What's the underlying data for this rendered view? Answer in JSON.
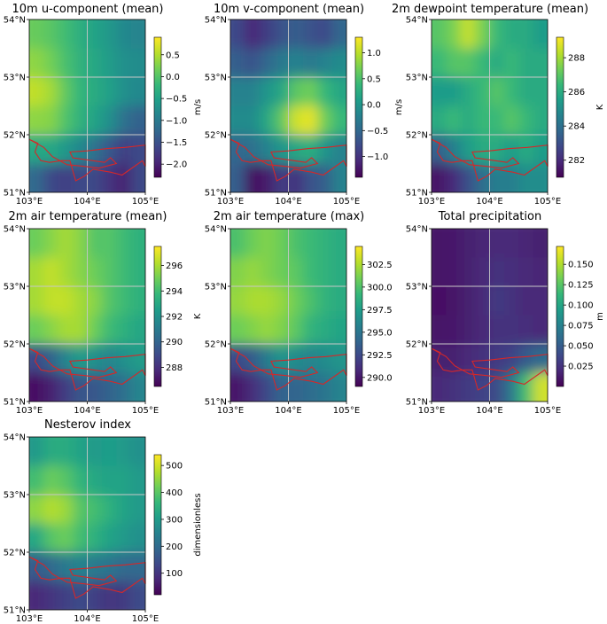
{
  "chart_data": [
    {
      "type": "heatmap",
      "id": "u10",
      "title": "10m u-component (mean)",
      "colorbar_label": "m/s",
      "colormap": "viridis",
      "vmin": -2.3,
      "vmax": 0.9,
      "colorbar_ticks": [
        0.5,
        0.0,
        -0.5,
        -1.0,
        -1.5,
        -2.0
      ],
      "colorbar_tick_labels": [
        "0.5",
        "0.0",
        "−0.5",
        "−1.0",
        "−1.5",
        "−2.0"
      ],
      "x_ticks": [
        103,
        104,
        105
      ],
      "x_tick_labels": [
        "103°E",
        "104°E",
        "105°E"
      ],
      "y_ticks": [
        51,
        52,
        53,
        54
      ],
      "y_tick_labels": [
        "51°N",
        "52°N",
        "53°N",
        "54°N"
      ],
      "xlim": [
        103,
        105
      ],
      "ylim": [
        51,
        54
      ],
      "grid_resolution": "6 rows (54°N→51°N) × 8 cols (103°E→105°E)",
      "values": [
        [
          0.15,
          0.05,
          -0.1,
          -0.3,
          -0.45,
          -0.6,
          -0.8,
          -0.85
        ],
        [
          0.35,
          0.2,
          -0.05,
          -0.25,
          -0.4,
          -0.55,
          -0.7,
          -0.75
        ],
        [
          0.6,
          0.45,
          0.1,
          -0.2,
          -0.35,
          -0.5,
          -0.7,
          -0.8
        ],
        [
          0.35,
          0.3,
          0.0,
          -0.25,
          -0.45,
          -0.7,
          -1.1,
          -1.3
        ],
        [
          -0.4,
          -0.4,
          -0.6,
          -0.8,
          -1.1,
          -1.4,
          -1.7,
          -1.6
        ],
        [
          -1.2,
          -1.6,
          -1.7,
          -1.6,
          -1.6,
          -1.8,
          -2.0,
          -1.6
        ]
      ]
    },
    {
      "type": "heatmap",
      "id": "v10",
      "title": "10m v-component (mean)",
      "colorbar_label": "m/s",
      "colormap": "viridis",
      "vmin": -1.4,
      "vmax": 1.3,
      "colorbar_ticks": [
        1.0,
        0.5,
        0.0,
        -0.5,
        -1.0
      ],
      "colorbar_tick_labels": [
        "1.0",
        "0.5",
        "0.0",
        "−0.5",
        "−1.0"
      ],
      "x_ticks": [
        103,
        104,
        105
      ],
      "x_tick_labels": [
        "103°E",
        "104°E",
        "105°E"
      ],
      "y_ticks": [
        51,
        52,
        53,
        54
      ],
      "y_tick_labels": [
        "51°N",
        "52°N",
        "53°N",
        "54°N"
      ],
      "xlim": [
        103,
        105
      ],
      "ylim": [
        51,
        54
      ],
      "grid_resolution": "6 rows (54°N→51°N) × 8 cols (103°E→105°E)",
      "values": [
        [
          -0.8,
          -1.1,
          -0.9,
          -0.7,
          -0.6,
          -0.7,
          -0.8,
          -0.5
        ],
        [
          -0.6,
          -0.7,
          -0.5,
          -0.3,
          -0.2,
          -0.3,
          -0.2,
          -0.1
        ],
        [
          -0.2,
          -0.2,
          0.0,
          0.2,
          0.6,
          0.7,
          0.4,
          0.2
        ],
        [
          -0.1,
          -0.1,
          0.2,
          0.6,
          1.1,
          1.2,
          0.7,
          0.4
        ],
        [
          -0.5,
          -0.4,
          -0.2,
          0.0,
          0.2,
          0.3,
          0.0,
          -0.2
        ],
        [
          -0.6,
          -1.3,
          -1.2,
          -0.9,
          -1.0,
          -0.7,
          -0.6,
          -0.2
        ]
      ]
    },
    {
      "type": "heatmap",
      "id": "d2m",
      "title": "2m dewpoint temperature (mean)",
      "colorbar_label": "K",
      "colormap": "viridis",
      "vmin": 281.0,
      "vmax": 289.2,
      "colorbar_ticks": [
        288,
        286,
        284,
        282
      ],
      "colorbar_tick_labels": [
        "288",
        "286",
        "284",
        "282"
      ],
      "x_ticks": [
        103,
        104,
        105
      ],
      "x_tick_labels": [
        "103°E",
        "104°E",
        "105°E"
      ],
      "y_ticks": [
        51,
        52,
        53,
        54
      ],
      "y_tick_labels": [
        "51°N",
        "52°N",
        "53°N",
        "54°N"
      ],
      "xlim": [
        103,
        105
      ],
      "ylim": [
        51,
        54
      ],
      "grid_resolution": "6 rows (54°N→51°N) × 8 cols (103°E→105°E)",
      "values": [
        [
          287.0,
          287.5,
          288.5,
          287.5,
          286.5,
          286.0,
          286.0,
          285.5
        ],
        [
          286.5,
          287.0,
          287.0,
          286.5,
          286.0,
          286.5,
          286.0,
          286.0
        ],
        [
          285.5,
          285.5,
          286.0,
          286.5,
          287.0,
          286.5,
          286.0,
          286.0
        ],
        [
          286.0,
          286.5,
          286.0,
          286.5,
          286.5,
          287.0,
          286.5,
          286.0
        ],
        [
          283.5,
          284.5,
          285.5,
          286.0,
          286.0,
          285.5,
          286.0,
          285.5
        ],
        [
          281.5,
          282.0,
          283.0,
          284.0,
          284.5,
          284.5,
          285.0,
          285.0
        ]
      ]
    },
    {
      "type": "heatmap",
      "id": "t2m_mean",
      "title": "2m air temperature (mean)",
      "colorbar_label": "K",
      "colormap": "viridis",
      "vmin": 286.5,
      "vmax": 297.5,
      "colorbar_ticks": [
        296,
        294,
        292,
        290,
        288
      ],
      "colorbar_tick_labels": [
        "296",
        "294",
        "292",
        "290",
        "288"
      ],
      "x_ticks": [
        103,
        104,
        105
      ],
      "x_tick_labels": [
        "103°E",
        "104°E",
        "105°E"
      ],
      "y_ticks": [
        51,
        52,
        53,
        54
      ],
      "y_tick_labels": [
        "51°N",
        "52°N",
        "53°N",
        "54°N"
      ],
      "xlim": [
        103,
        105
      ],
      "ylim": [
        51,
        54
      ],
      "grid_resolution": "6 rows (54°N→51°N) × 8 cols (103°E→105°E)",
      "values": [
        [
          295.0,
          295.5,
          296.0,
          295.5,
          294.5,
          294.5,
          294.0,
          293.5
        ],
        [
          296.0,
          296.5,
          296.0,
          295.5,
          295.0,
          294.5,
          294.0,
          293.5
        ],
        [
          296.0,
          296.5,
          296.5,
          296.0,
          295.5,
          294.5,
          294.0,
          293.5
        ],
        [
          295.0,
          295.5,
          296.0,
          296.0,
          295.0,
          294.0,
          293.5,
          293.0
        ],
        [
          289.0,
          290.0,
          291.5,
          292.5,
          292.0,
          291.5,
          292.0,
          292.5
        ],
        [
          287.0,
          287.5,
          288.5,
          289.5,
          289.5,
          290.0,
          290.5,
          291.5
        ]
      ]
    },
    {
      "type": "heatmap",
      "id": "t2m_max",
      "title": "2m air temperature (max)",
      "colorbar_label": "",
      "colormap": "viridis",
      "vmin": 289.0,
      "vmax": 304.5,
      "colorbar_ticks": [
        302.5,
        300.0,
        297.5,
        295.0,
        292.5,
        290.0
      ],
      "colorbar_tick_labels": [
        "302.5",
        "300.0",
        "297.5",
        "295.0",
        "292.5",
        "290.0"
      ],
      "x_ticks": [
        103,
        104,
        105
      ],
      "x_tick_labels": [
        "103°E",
        "104°E",
        "105°E"
      ],
      "y_ticks": [
        51,
        52,
        53,
        54
      ],
      "y_tick_labels": [
        "51°N",
        "52°N",
        "53°N",
        "54°N"
      ],
      "xlim": [
        103,
        105
      ],
      "ylim": [
        51,
        54
      ],
      "grid_resolution": "6 rows (54°N→51°N) × 8 cols (103°E→105°E)",
      "values": [
        [
          300.0,
          301.0,
          301.5,
          301.0,
          300.0,
          299.5,
          299.0,
          298.5
        ],
        [
          301.5,
          302.0,
          301.5,
          301.0,
          300.5,
          299.5,
          299.0,
          298.5
        ],
        [
          302.0,
          302.5,
          302.5,
          302.0,
          301.0,
          300.0,
          299.0,
          298.5
        ],
        [
          301.0,
          301.5,
          302.0,
          301.5,
          300.5,
          299.0,
          298.5,
          298.0
        ],
        [
          292.5,
          293.5,
          295.5,
          297.0,
          296.5,
          296.0,
          296.5,
          297.0
        ],
        [
          290.0,
          291.0,
          292.5,
          294.0,
          294.0,
          294.5,
          295.0,
          296.0
        ]
      ]
    },
    {
      "type": "heatmap",
      "id": "tp",
      "title": "Total precipitation",
      "colorbar_label": "m",
      "colormap": "viridis",
      "vmin": 0.0,
      "vmax": 0.172,
      "colorbar_ticks": [
        0.15,
        0.125,
        0.1,
        0.075,
        0.05,
        0.025
      ],
      "colorbar_tick_labels": [
        "0.150",
        "0.125",
        "0.100",
        "0.075",
        "0.050",
        "0.025"
      ],
      "x_ticks": [
        103,
        104,
        105
      ],
      "x_tick_labels": [
        "103°E",
        "104°E",
        "105°E"
      ],
      "y_ticks": [
        51,
        52,
        53,
        54
      ],
      "y_tick_labels": [
        "51°N",
        "52°N",
        "53°N",
        "54°N"
      ],
      "xlim": [
        103,
        105
      ],
      "ylim": [
        51,
        54
      ],
      "grid_resolution": "6 rows (54°N→51°N) × 8 cols (103°E→105°E)",
      "values": [
        [
          0.01,
          0.012,
          0.015,
          0.018,
          0.02,
          0.02,
          0.018,
          0.015
        ],
        [
          0.01,
          0.012,
          0.015,
          0.02,
          0.025,
          0.022,
          0.02,
          0.018
        ],
        [
          0.008,
          0.01,
          0.015,
          0.02,
          0.03,
          0.025,
          0.02,
          0.02
        ],
        [
          0.01,
          0.012,
          0.015,
          0.02,
          0.025,
          0.025,
          0.022,
          0.02
        ],
        [
          0.015,
          0.015,
          0.02,
          0.025,
          0.03,
          0.035,
          0.05,
          0.06
        ],
        [
          0.02,
          0.025,
          0.03,
          0.035,
          0.04,
          0.07,
          0.12,
          0.16
        ]
      ]
    },
    {
      "type": "heatmap",
      "id": "nesterov",
      "title": "Nesterov index",
      "colorbar_label": "dimensionless",
      "colormap": "viridis",
      "vmin": 20,
      "vmax": 540,
      "colorbar_ticks": [
        500,
        400,
        300,
        200,
        100
      ],
      "colorbar_tick_labels": [
        "500",
        "400",
        "300",
        "200",
        "100"
      ],
      "x_ticks": [
        103,
        104,
        105
      ],
      "x_tick_labels": [
        "103°E",
        "104°E",
        "105°E"
      ],
      "y_ticks": [
        51,
        52,
        53,
        54
      ],
      "y_tick_labels": [
        "51°N",
        "52°N",
        "53°N",
        "54°N"
      ],
      "xlim": [
        103,
        105
      ],
      "ylim": [
        51,
        54
      ],
      "grid_resolution": "6 rows (54°N→51°N) × 8 cols (103°E→105°E)",
      "values": [
        [
          300,
          340,
          340,
          320,
          300,
          310,
          300,
          280
        ],
        [
          380,
          420,
          400,
          360,
          330,
          320,
          320,
          300
        ],
        [
          450,
          480,
          460,
          400,
          380,
          350,
          320,
          300
        ],
        [
          330,
          400,
          420,
          380,
          350,
          320,
          300,
          280
        ],
        [
          170,
          200,
          230,
          250,
          230,
          220,
          200,
          200
        ],
        [
          80,
          100,
          120,
          140,
          120,
          100,
          110,
          140
        ]
      ]
    }
  ],
  "region_boundary": {
    "color": "#d62728",
    "lonlat": [
      [
        103.0,
        51.92
      ],
      [
        103.15,
        51.85
      ],
      [
        103.1,
        51.7
      ],
      [
        103.2,
        51.55
      ],
      [
        103.35,
        51.52
      ],
      [
        103.55,
        51.55
      ],
      [
        103.7,
        51.55
      ],
      [
        103.8,
        51.2
      ],
      [
        103.95,
        51.28
      ],
      [
        104.1,
        51.4
      ],
      [
        104.4,
        51.35
      ],
      [
        104.6,
        51.3
      ],
      [
        104.95,
        51.55
      ],
      [
        105.0,
        51.45
      ],
      [
        105.0,
        51.82
      ],
      [
        104.65,
        51.78
      ],
      [
        104.35,
        51.76
      ],
      [
        104.0,
        51.72
      ],
      [
        103.7,
        51.7
      ],
      [
        103.75,
        51.6
      ],
      [
        104.1,
        51.55
      ],
      [
        104.3,
        51.52
      ],
      [
        104.4,
        51.6
      ],
      [
        104.5,
        51.5
      ],
      [
        104.2,
        51.42
      ],
      [
        103.95,
        51.45
      ],
      [
        103.65,
        51.48
      ],
      [
        103.4,
        51.62
      ],
      [
        103.25,
        51.78
      ],
      [
        103.0,
        51.92
      ]
    ]
  },
  "viridis_stops": [
    "#440154",
    "#482878",
    "#3e4989",
    "#31688e",
    "#26828e",
    "#1f9e89",
    "#35b779",
    "#6ece58",
    "#b5de2b",
    "#fde725"
  ]
}
